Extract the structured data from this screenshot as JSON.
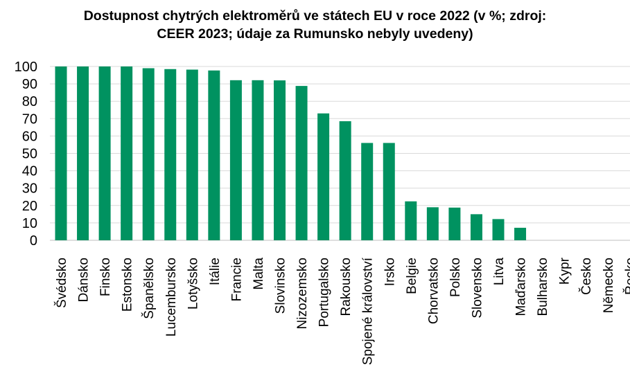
{
  "chart_data": {
    "type": "bar",
    "title": "Dostupnost chytrých elektroměrů ve státech EU v roce 2022 (v %; zdroj: CEER 2023; údaje za Rumunsko nebyly uvedeny)",
    "title_lines": [
      "Dostupnost chytrých elektroměrů ve státech EU v roce 2022 (v %; zdroj:",
      "CEER 2023; údaje za Rumunsko nebyly uvedeny)"
    ],
    "categories": [
      "Švédsko",
      "Dánsko",
      "Finsko",
      "Estonsko",
      "Španělsko",
      "Lucembursko",
      "Lotyšsko",
      "Itálie",
      "Francie",
      "Malta",
      "Slovinsko",
      "Nizozemsko",
      "Portugalsko",
      "Rakousko",
      "Spojené království",
      "Irsko",
      "Belgie",
      "Chorvatsko",
      "Polsko",
      "Slovensko",
      "Litva",
      "Maďarsko",
      "Bulharsko",
      "Kypr",
      "Česko",
      "Německo",
      "Řecko"
    ],
    "values": [
      100,
      100,
      100,
      100,
      99,
      98.5,
      98.2,
      97.7,
      92.1,
      92.1,
      92,
      88.8,
      73,
      68.5,
      56,
      56,
      22.4,
      19,
      18.8,
      15,
      12.2,
      7.2,
      0,
      0,
      0,
      0,
      0
    ],
    "ylim": [
      0,
      100
    ],
    "yticks": [
      0,
      10,
      20,
      30,
      40,
      50,
      60,
      70,
      80,
      90,
      100
    ],
    "grid": true,
    "bar_color": "#009260",
    "grid_color": "#d9d9d9",
    "legend": "none"
  }
}
